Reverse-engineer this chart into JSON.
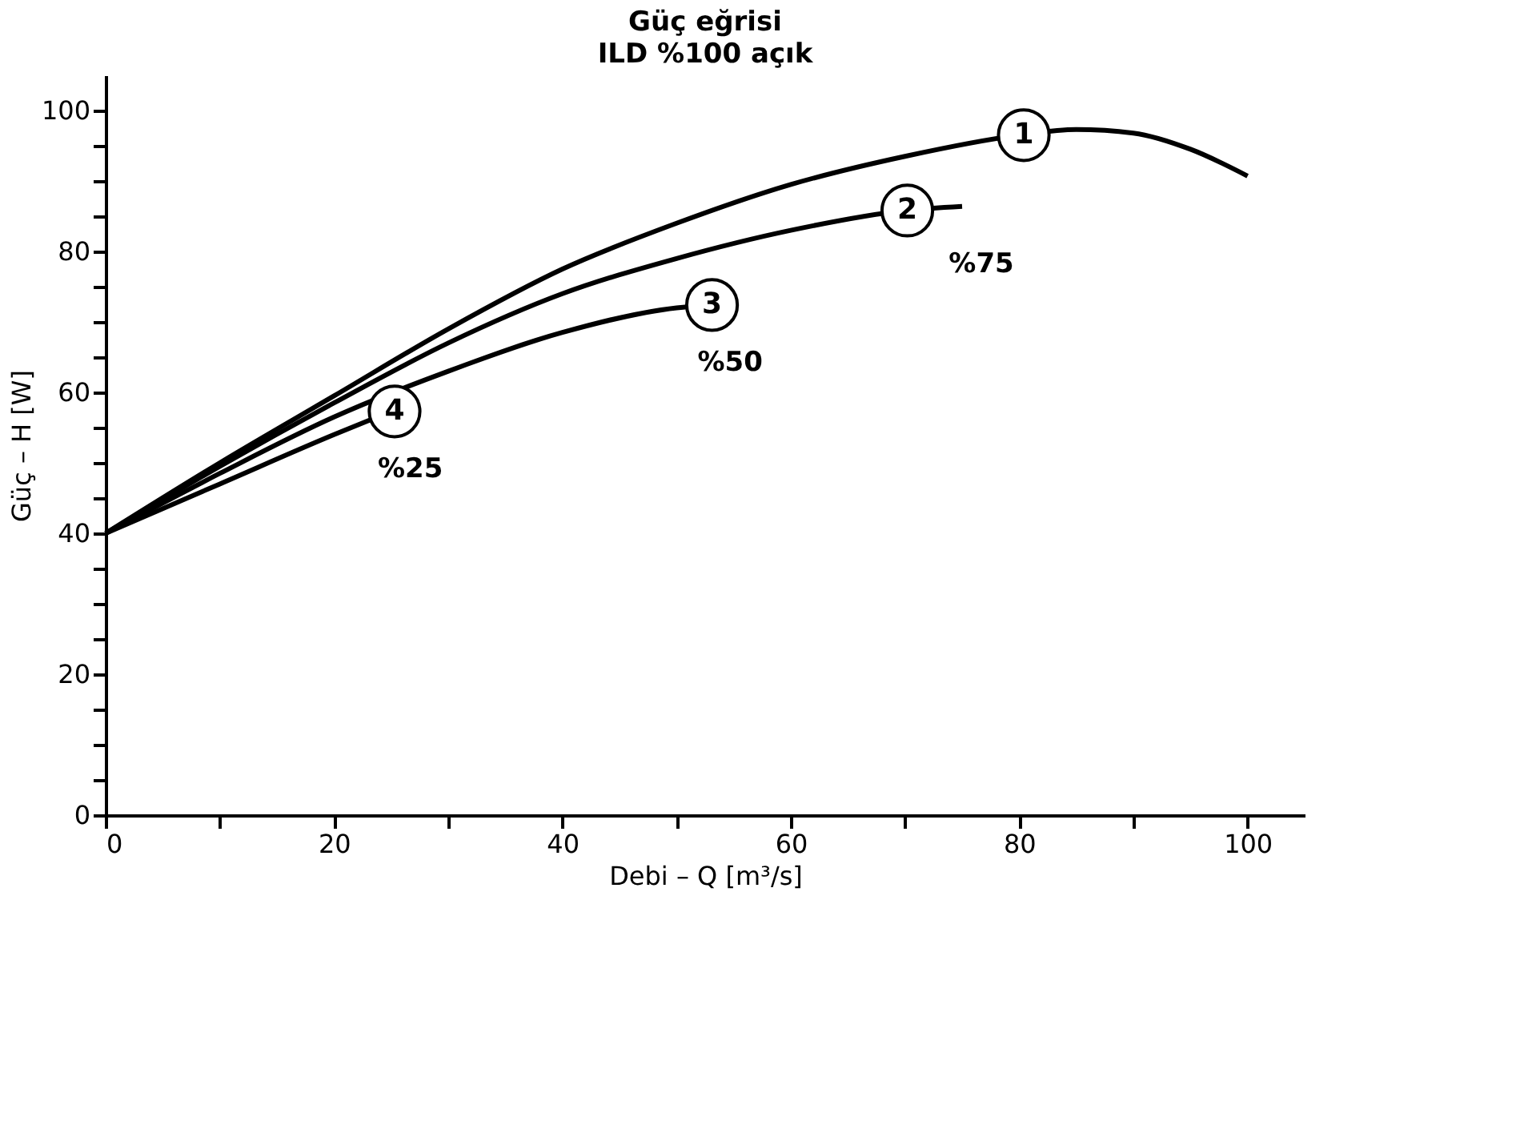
{
  "chart_data": {
    "type": "line",
    "title": "Güç eğrisi",
    "subtitle": "ILD %100 açık",
    "xlabel": "Debi – Q [m³/s]",
    "ylabel": "Güç – H  [W]",
    "xlim": [
      0,
      105
    ],
    "ylim": [
      0,
      105
    ],
    "xticks": [
      0,
      {
        "value": 10,
        "label": null
      },
      20,
      {
        "value": 30,
        "label": null
      },
      40,
      {
        "value": 50,
        "label": null
      },
      60,
      {
        "value": 70,
        "label": null
      },
      80,
      {
        "value": 90,
        "label": null
      },
      100
    ],
    "yticks": [
      0,
      {
        "value": 5,
        "label": null
      },
      {
        "value": 10,
        "label": null
      },
      {
        "value": 15,
        "label": null
      },
      20,
      {
        "value": 25,
        "label": null
      },
      {
        "value": 30,
        "label": null
      },
      {
        "value": 35,
        "label": null
      },
      40,
      {
        "value": 45,
        "label": null
      },
      {
        "value": 50,
        "label": null
      },
      {
        "value": 55,
        "label": null
      },
      60,
      {
        "value": 65,
        "label": null
      },
      {
        "value": 70,
        "label": null
      },
      {
        "value": 75,
        "label": null
      },
      80,
      {
        "value": 85,
        "label": null
      },
      {
        "value": 90,
        "label": null
      },
      {
        "value": 95,
        "label": null
      },
      100
    ],
    "grid": false,
    "marker": "none",
    "line_style": "solid",
    "series": [
      {
        "color": "#000000",
        "x": [
          0,
          10,
          20,
          30,
          40,
          50,
          60,
          70,
          80,
          85,
          90,
          95,
          100
        ],
        "values": [
          40,
          50,
          59.5,
          69,
          77.5,
          84,
          89.5,
          93.5,
          96.5,
          97.3,
          96.8,
          94.5,
          90.7
        ]
      },
      {
        "color": "#000000",
        "x": [
          0,
          10,
          20,
          30,
          40,
          50,
          60,
          70,
          75
        ],
        "values": [
          40,
          49.5,
          58.5,
          67,
          74,
          79,
          83,
          85.8,
          86.4
        ]
      },
      {
        "color": "#000000",
        "x": [
          0,
          10,
          20,
          30,
          40,
          50,
          53
        ],
        "values": [
          40,
          48.5,
          56.5,
          63,
          68.5,
          72,
          72.4
        ]
      },
      {
        "color": "#000000",
        "x": [
          0,
          10,
          20,
          25
        ],
        "values": [
          40,
          47,
          54,
          57.3
        ]
      }
    ],
    "annotations": [
      {
        "text": "1",
        "x": 80.4,
        "y": 96.5
      },
      {
        "text": "2",
        "x": 70.2,
        "y": 85.8
      },
      {
        "text": "3",
        "x": 53.1,
        "y": 72.4
      },
      {
        "text": "4",
        "x": 25.3,
        "y": 57.3
      },
      {
        "text": "%75",
        "x": 75,
        "y": 86.4
      },
      {
        "text": "%50",
        "x": 53,
        "y": 72.4
      },
      {
        "text": "%25",
        "x": 25,
        "y": 57.3
      }
    ]
  }
}
